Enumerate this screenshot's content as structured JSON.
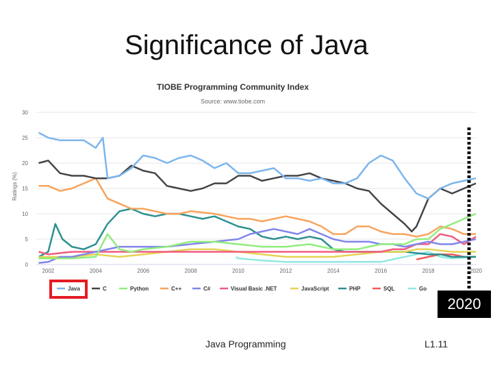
{
  "slide": {
    "title": "Significance of Java",
    "callout": "2020",
    "footer_left": "Java Programming",
    "footer_right": "L1.11"
  },
  "colors": {
    "highlight_red": "#e31b23",
    "marker_black": "#111111",
    "grid": "#e6e6e6"
  },
  "chart_data": {
    "type": "line",
    "title": "TIOBE Programming Community Index",
    "subtitle": "Source: www.tiobe.com",
    "xlabel": "",
    "ylabel": "Ratings (%)",
    "xlim": [
      2001.5,
      2020.0
    ],
    "ylim": [
      0,
      30
    ],
    "xticks": [
      2002,
      2004,
      2006,
      2008,
      2010,
      2012,
      2014,
      2016,
      2018,
      2020
    ],
    "yticks": [
      0,
      5,
      10,
      15,
      20,
      25,
      30
    ],
    "grid": true,
    "legend_position": "bottom",
    "highlighted_series": "Java",
    "marker_x": 2020,
    "series": [
      {
        "name": "Java",
        "color": "#7cb5ec",
        "points": [
          [
            2001.6,
            26
          ],
          [
            2002,
            25
          ],
          [
            2002.5,
            24.5
          ],
          [
            2003,
            24.5
          ],
          [
            2003.5,
            24.5
          ],
          [
            2004,
            23
          ],
          [
            2004.3,
            25
          ],
          [
            2004.5,
            17
          ],
          [
            2005,
            17.5
          ],
          [
            2005.5,
            19
          ],
          [
            2006,
            21.5
          ],
          [
            2006.5,
            21
          ],
          [
            2007,
            20
          ],
          [
            2007.5,
            21
          ],
          [
            2008,
            21.5
          ],
          [
            2008.5,
            20.5
          ],
          [
            2009,
            19
          ],
          [
            2009.5,
            20
          ],
          [
            2010,
            18
          ],
          [
            2010.5,
            18
          ],
          [
            2011,
            18.5
          ],
          [
            2011.5,
            19
          ],
          [
            2012,
            17
          ],
          [
            2012.5,
            17
          ],
          [
            2013,
            16.5
          ],
          [
            2013.5,
            17
          ],
          [
            2014,
            16
          ],
          [
            2014.5,
            16
          ],
          [
            2015,
            17
          ],
          [
            2015.5,
            20
          ],
          [
            2016,
            21.5
          ],
          [
            2016.5,
            20.5
          ],
          [
            2017,
            17
          ],
          [
            2017.5,
            14
          ],
          [
            2018,
            13
          ],
          [
            2018.5,
            15
          ],
          [
            2019,
            16
          ],
          [
            2019.5,
            16.5
          ],
          [
            2020,
            17
          ]
        ]
      },
      {
        "name": "C",
        "color": "#434348",
        "points": [
          [
            2001.6,
            20
          ],
          [
            2002,
            20.5
          ],
          [
            2002.5,
            18
          ],
          [
            2003,
            17.5
          ],
          [
            2003.5,
            17.5
          ],
          [
            2004,
            17
          ],
          [
            2004.5,
            17
          ],
          [
            2005,
            17.5
          ],
          [
            2005.5,
            19.5
          ],
          [
            2006,
            18.5
          ],
          [
            2006.5,
            18
          ],
          [
            2007,
            15.5
          ],
          [
            2007.5,
            15
          ],
          [
            2008,
            14.5
          ],
          [
            2008.5,
            15
          ],
          [
            2009,
            16
          ],
          [
            2009.5,
            16
          ],
          [
            2010,
            17.5
          ],
          [
            2010.5,
            17.5
          ],
          [
            2011,
            16.5
          ],
          [
            2011.5,
            17
          ],
          [
            2012,
            17.5
          ],
          [
            2012.5,
            17.5
          ],
          [
            2013,
            18
          ],
          [
            2013.5,
            17
          ],
          [
            2014,
            16.5
          ],
          [
            2014.5,
            16
          ],
          [
            2015,
            15
          ],
          [
            2015.5,
            14.5
          ],
          [
            2016,
            12
          ],
          [
            2016.5,
            10
          ],
          [
            2017,
            8
          ],
          [
            2017.3,
            6.5
          ],
          [
            2017.5,
            7.5
          ],
          [
            2018,
            13
          ],
          [
            2018.5,
            15
          ],
          [
            2019,
            14
          ],
          [
            2019.5,
            15
          ],
          [
            2020,
            16
          ]
        ]
      },
      {
        "name": "Python",
        "color": "#90ed7d",
        "points": [
          [
            2001.6,
            1.2
          ],
          [
            2002,
            1.2
          ],
          [
            2003,
            1.2
          ],
          [
            2004,
            1.5
          ],
          [
            2004.5,
            6
          ],
          [
            2005,
            3
          ],
          [
            2005.5,
            2.5
          ],
          [
            2006,
            3
          ],
          [
            2007,
            3.5
          ],
          [
            2008,
            4.5
          ],
          [
            2009,
            4.5
          ],
          [
            2010,
            4
          ],
          [
            2011,
            3.5
          ],
          [
            2012,
            3.5
          ],
          [
            2013,
            4
          ],
          [
            2014,
            3
          ],
          [
            2015,
            3
          ],
          [
            2016,
            4
          ],
          [
            2017,
            4
          ],
          [
            2017.5,
            5
          ],
          [
            2018,
            5
          ],
          [
            2018.5,
            7
          ],
          [
            2019,
            8
          ],
          [
            2019.5,
            9
          ],
          [
            2020,
            10
          ]
        ]
      },
      {
        "name": "C++",
        "color": "#f7a35c",
        "points": [
          [
            2001.6,
            15.5
          ],
          [
            2002,
            15.5
          ],
          [
            2002.5,
            14.5
          ],
          [
            2003,
            15
          ],
          [
            2003.5,
            16
          ],
          [
            2004,
            17
          ],
          [
            2004.5,
            13
          ],
          [
            2005,
            12
          ],
          [
            2005.5,
            11
          ],
          [
            2006,
            11
          ],
          [
            2006.5,
            10.5
          ],
          [
            2007,
            10
          ],
          [
            2007.5,
            10
          ],
          [
            2008,
            10.5
          ],
          [
            2009,
            10
          ],
          [
            2009.5,
            9.5
          ],
          [
            2010,
            9
          ],
          [
            2010.5,
            9
          ],
          [
            2011,
            8.5
          ],
          [
            2011.5,
            9
          ],
          [
            2012,
            9.5
          ],
          [
            2012.5,
            9
          ],
          [
            2013,
            8.5
          ],
          [
            2013.5,
            7.5
          ],
          [
            2014,
            6
          ],
          [
            2014.5,
            6
          ],
          [
            2015,
            7.5
          ],
          [
            2015.5,
            7.5
          ],
          [
            2016,
            6.5
          ],
          [
            2016.5,
            6
          ],
          [
            2017,
            6
          ],
          [
            2017.5,
            5.5
          ],
          [
            2018,
            6
          ],
          [
            2018.5,
            7.5
          ],
          [
            2019,
            7
          ],
          [
            2019.5,
            6
          ],
          [
            2020,
            6
          ]
        ]
      },
      {
        "name": "C#",
        "color": "#8085e9",
        "points": [
          [
            2001.6,
            0.3
          ],
          [
            2002,
            0.5
          ],
          [
            2002.5,
            1.5
          ],
          [
            2003,
            1.5
          ],
          [
            2003.5,
            2
          ],
          [
            2004,
            2.5
          ],
          [
            2005,
            3.5
          ],
          [
            2006,
            3.5
          ],
          [
            2007,
            3.5
          ],
          [
            2008,
            4
          ],
          [
            2009,
            4.5
          ],
          [
            2010,
            5
          ],
          [
            2010.5,
            6
          ],
          [
            2011,
            6.5
          ],
          [
            2011.5,
            7
          ],
          [
            2012,
            6.5
          ],
          [
            2012.5,
            6
          ],
          [
            2013,
            7
          ],
          [
            2013.5,
            6
          ],
          [
            2014,
            5
          ],
          [
            2014.5,
            4.5
          ],
          [
            2015,
            4.5
          ],
          [
            2015.5,
            4.5
          ],
          [
            2016,
            4
          ],
          [
            2016.5,
            4
          ],
          [
            2017,
            3.5
          ],
          [
            2017.5,
            4
          ],
          [
            2018,
            4.5
          ],
          [
            2018.5,
            4
          ],
          [
            2019,
            4
          ],
          [
            2019.5,
            4.5
          ],
          [
            2020,
            5
          ]
        ]
      },
      {
        "name": "Visual Basic .NET",
        "color": "#f15c80",
        "points": [
          [
            2001.6,
            2.5
          ],
          [
            2002,
            2
          ],
          [
            2003,
            2.5
          ],
          [
            2004,
            2.5
          ],
          [
            2005,
            2.5
          ],
          [
            2006,
            2.5
          ],
          [
            2007,
            2.5
          ],
          [
            2008,
            2.5
          ],
          [
            2009,
            2.5
          ],
          [
            2010,
            2.5
          ],
          [
            2011,
            2.5
          ],
          [
            2012,
            2.5
          ],
          [
            2013,
            2.5
          ],
          [
            2014,
            2.5
          ],
          [
            2015,
            2.5
          ],
          [
            2016,
            2.5
          ],
          [
            2016.5,
            3
          ],
          [
            2017,
            3
          ],
          [
            2017.5,
            4
          ],
          [
            2018,
            4
          ],
          [
            2018.5,
            6
          ],
          [
            2019,
            5.5
          ],
          [
            2019.5,
            4
          ],
          [
            2020,
            5.5
          ]
        ]
      },
      {
        "name": "JavaScript",
        "color": "#e4d354",
        "points": [
          [
            2001.6,
            1.5
          ],
          [
            2003,
            1.5
          ],
          [
            2004,
            2
          ],
          [
            2005,
            1.5
          ],
          [
            2006,
            2
          ],
          [
            2007,
            2.5
          ],
          [
            2008,
            3
          ],
          [
            2009,
            3
          ],
          [
            2010,
            2.5
          ],
          [
            2011,
            2
          ],
          [
            2012,
            1.5
          ],
          [
            2013,
            1.5
          ],
          [
            2014,
            1.5
          ],
          [
            2015,
            2
          ],
          [
            2016,
            2.5
          ],
          [
            2017,
            2.5
          ],
          [
            2017.5,
            3
          ],
          [
            2018,
            3
          ],
          [
            2019,
            2.5
          ],
          [
            2020,
            2.5
          ]
        ]
      },
      {
        "name": "PHP",
        "color": "#2b908f",
        "points": [
          [
            2001.6,
            1.5
          ],
          [
            2002,
            2.5
          ],
          [
            2002.3,
            8
          ],
          [
            2002.6,
            5
          ],
          [
            2003,
            3.5
          ],
          [
            2003.5,
            3
          ],
          [
            2004,
            4
          ],
          [
            2004.5,
            8
          ],
          [
            2005,
            10.5
          ],
          [
            2005.5,
            11
          ],
          [
            2006,
            10
          ],
          [
            2006.5,
            9.5
          ],
          [
            2007,
            10
          ],
          [
            2007.5,
            10
          ],
          [
            2008,
            9.5
          ],
          [
            2008.5,
            9
          ],
          [
            2009,
            9.5
          ],
          [
            2009.5,
            8.5
          ],
          [
            2010,
            7.5
          ],
          [
            2010.5,
            7
          ],
          [
            2011,
            5.5
          ],
          [
            2011.5,
            5
          ],
          [
            2012,
            5.5
          ],
          [
            2012.5,
            5
          ],
          [
            2013,
            5.5
          ],
          [
            2013.5,
            5
          ],
          [
            2014,
            3
          ],
          [
            2014.5,
            2.5
          ],
          [
            2015,
            2.5
          ],
          [
            2015.5,
            2.5
          ],
          [
            2016,
            2.5
          ],
          [
            2016.5,
            2.5
          ],
          [
            2017,
            2.5
          ],
          [
            2018,
            2
          ],
          [
            2018.5,
            2
          ],
          [
            2019,
            1.5
          ],
          [
            2020,
            1.5
          ]
        ]
      },
      {
        "name": "SQL",
        "color": "#f45b5b",
        "points": [
          [
            2017.5,
            1
          ],
          [
            2018,
            1.5
          ],
          [
            2018.5,
            2
          ],
          [
            2019,
            2
          ],
          [
            2019.5,
            1.5
          ],
          [
            2020,
            1.5
          ]
        ]
      },
      {
        "name": "Go",
        "color": "#91e8e1",
        "points": [
          [
            2009.9,
            1.5
          ],
          [
            2010,
            1.2
          ],
          [
            2011,
            0.8
          ],
          [
            2012,
            0.5
          ],
          [
            2013,
            0.5
          ],
          [
            2014,
            0.5
          ],
          [
            2015,
            0.5
          ],
          [
            2016,
            0.5
          ],
          [
            2016.5,
            1
          ],
          [
            2017,
            1.5
          ],
          [
            2017.5,
            2
          ],
          [
            2018,
            2.5
          ],
          [
            2018.5,
            1.5
          ],
          [
            2019,
            1.2
          ],
          [
            2020,
            1.5
          ]
        ]
      }
    ]
  }
}
